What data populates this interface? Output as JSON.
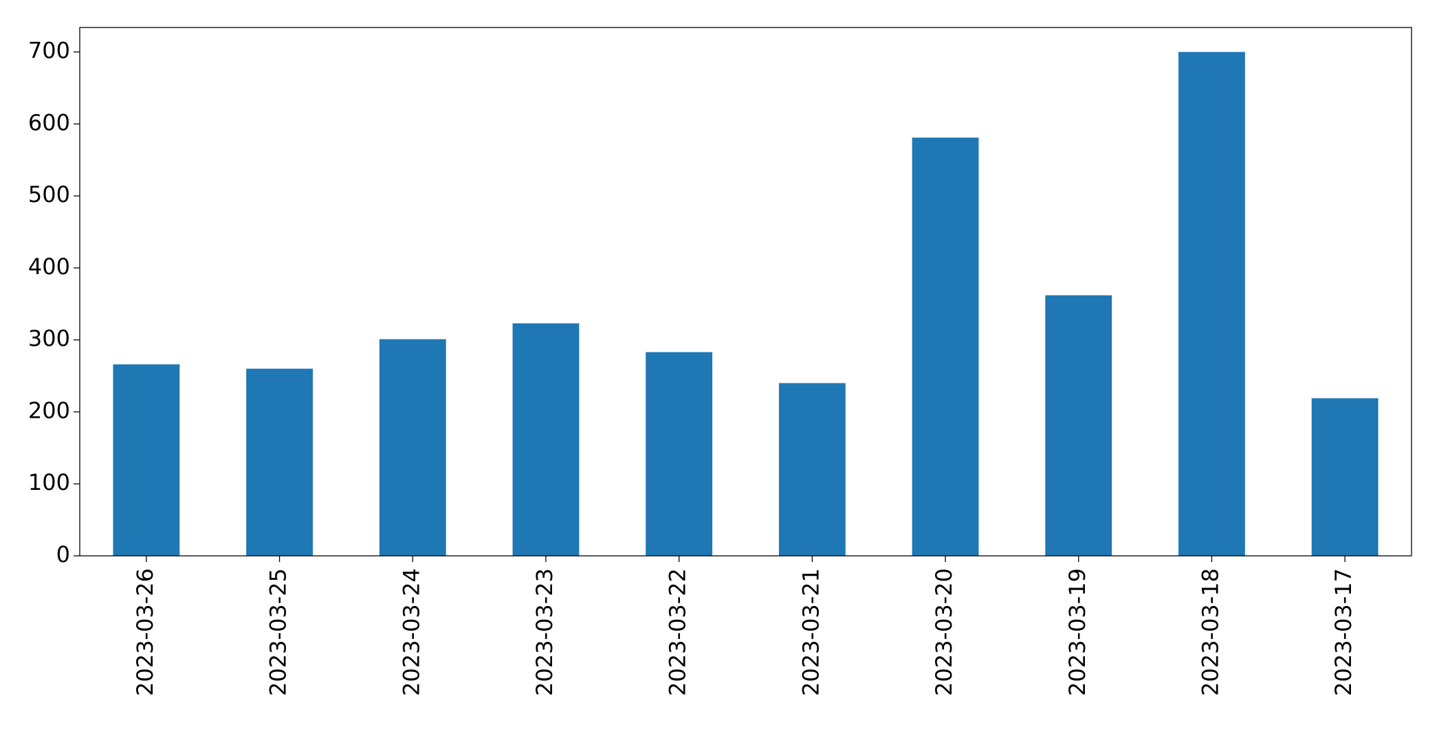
{
  "chart_data": {
    "type": "bar",
    "categories": [
      "2023-03-26",
      "2023-03-25",
      "2023-03-24",
      "2023-03-23",
      "2023-03-22",
      "2023-03-21",
      "2023-03-20",
      "2023-03-19",
      "2023-03-18",
      "2023-03-17"
    ],
    "values": [
      266,
      260,
      301,
      323,
      283,
      240,
      581,
      362,
      700,
      219
    ],
    "color": "#1f77b4",
    "ylim": [
      0,
      734
    ],
    "yticks": [
      0,
      100,
      200,
      300,
      400,
      500,
      600,
      700
    ],
    "grid": false
  }
}
